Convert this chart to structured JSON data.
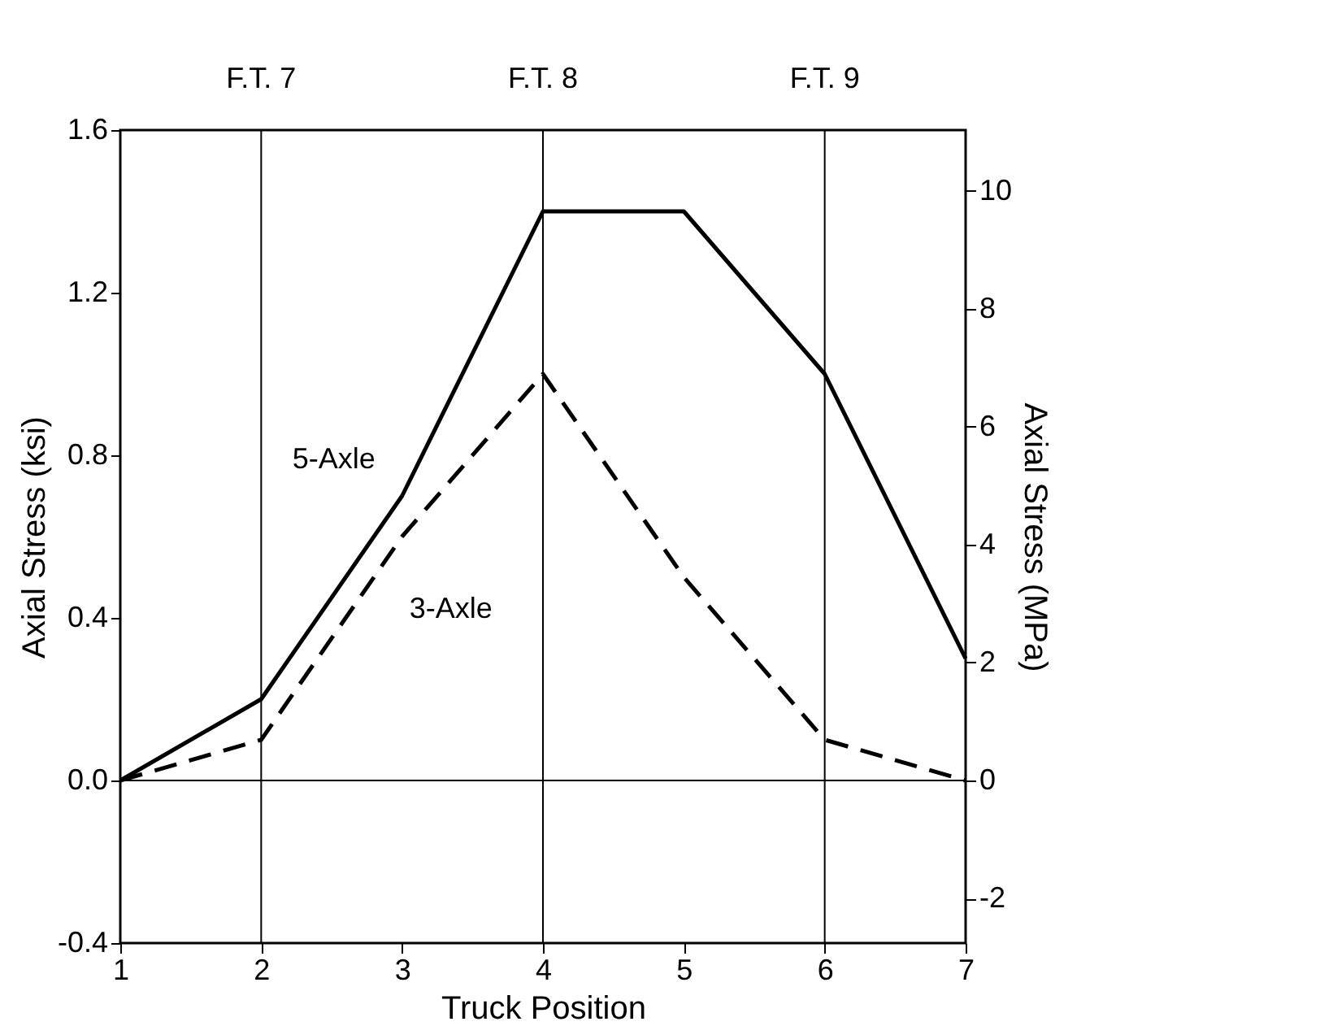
{
  "chart_data": {
    "type": "line",
    "xlabel": "Truck Position",
    "ylabel": "Axial Stress (ksi)",
    "y2label": "Axial Stress (MPa)",
    "x": [
      1,
      2,
      3,
      4,
      5,
      6,
      7
    ],
    "series": [
      {
        "name": "5-Axle",
        "color": "#000000",
        "line_style": "solid",
        "values": [
          0,
          0.2,
          0.7,
          1.4,
          1.4,
          1.0,
          0.3
        ]
      },
      {
        "name": "3-Axle",
        "color": "#000000",
        "line_style": "dashed",
        "values": [
          0,
          0.1,
          0.6,
          1.0,
          0.5,
          0.1,
          0.0
        ]
      }
    ],
    "xlim": [
      1,
      7
    ],
    "xticks": [
      1,
      2,
      3,
      4,
      5,
      6,
      7
    ],
    "ylim": [
      -0.4,
      1.6
    ],
    "yticks": [
      -0.4,
      {
        "value": 0,
        "label": "0.0"
      },
      0.4,
      0.8,
      1.2,
      1.6
    ],
    "y2lim": [
      -2.758,
      11.032
    ],
    "y2ticks": [
      -2,
      0,
      2,
      4,
      6,
      8,
      10
    ],
    "ref_lines": [
      {
        "axis": "x",
        "value": 2,
        "label": "F.T. 7"
      },
      {
        "axis": "x",
        "value": 4,
        "label": "F.T. 8"
      },
      {
        "axis": "x",
        "value": 6,
        "label": "F.T. 9"
      },
      {
        "axis": "y",
        "value": 0
      }
    ],
    "grid": false,
    "legend": false,
    "marker": "none"
  }
}
